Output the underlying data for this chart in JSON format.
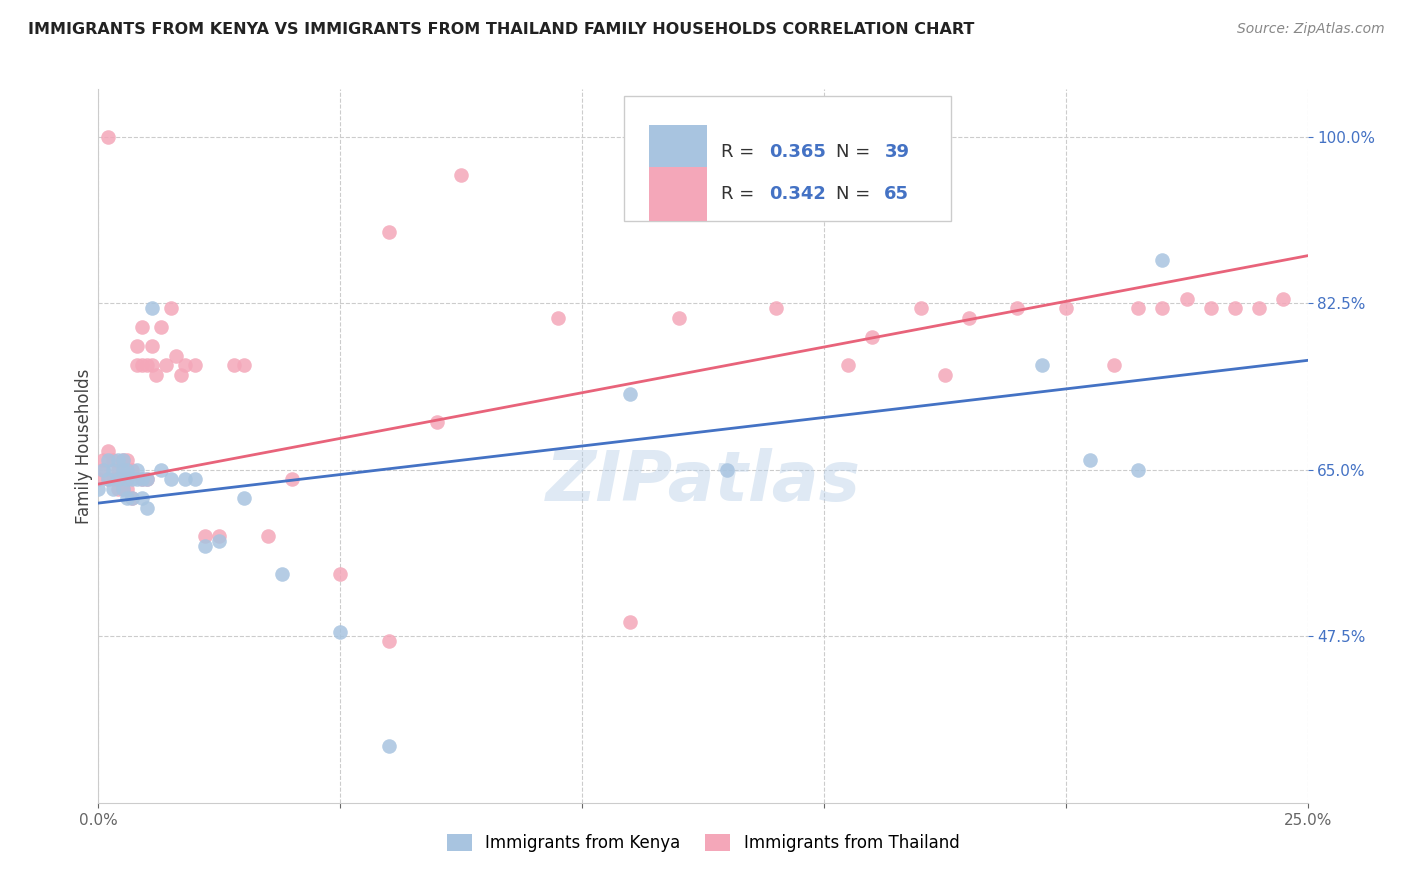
{
  "title": "IMMIGRANTS FROM KENYA VS IMMIGRANTS FROM THAILAND FAMILY HOUSEHOLDS CORRELATION CHART",
  "source": "Source: ZipAtlas.com",
  "ylabel": "Family Households",
  "kenya_color": "#a8c4e0",
  "thailand_color": "#f4a7b9",
  "kenya_line_color": "#4472c4",
  "thailand_line_color": "#e8637a",
  "watermark": "ZIPatlas",
  "kenya_x": [
    0.0,
    0.001,
    0.002,
    0.002,
    0.003,
    0.003,
    0.004,
    0.004,
    0.005,
    0.005,
    0.005,
    0.006,
    0.006,
    0.006,
    0.007,
    0.007,
    0.008,
    0.008,
    0.009,
    0.009,
    0.01,
    0.01,
    0.011,
    0.013,
    0.015,
    0.018,
    0.02,
    0.022,
    0.025,
    0.03,
    0.038,
    0.05,
    0.06,
    0.11,
    0.13,
    0.195,
    0.205,
    0.215,
    0.22
  ],
  "kenya_y": [
    0.63,
    0.65,
    0.64,
    0.66,
    0.63,
    0.65,
    0.64,
    0.66,
    0.63,
    0.65,
    0.66,
    0.64,
    0.62,
    0.65,
    0.62,
    0.64,
    0.64,
    0.65,
    0.62,
    0.64,
    0.61,
    0.64,
    0.82,
    0.65,
    0.64,
    0.64,
    0.64,
    0.57,
    0.575,
    0.62,
    0.54,
    0.48,
    0.36,
    0.73,
    0.65,
    0.76,
    0.66,
    0.65,
    0.87
  ],
  "thailand_x": [
    0.0,
    0.001,
    0.001,
    0.002,
    0.002,
    0.003,
    0.003,
    0.004,
    0.004,
    0.005,
    0.005,
    0.005,
    0.006,
    0.006,
    0.006,
    0.007,
    0.007,
    0.008,
    0.008,
    0.009,
    0.009,
    0.009,
    0.01,
    0.01,
    0.011,
    0.011,
    0.012,
    0.013,
    0.014,
    0.015,
    0.016,
    0.017,
    0.018,
    0.02,
    0.022,
    0.025,
    0.028,
    0.03,
    0.035,
    0.04,
    0.05,
    0.06,
    0.07,
    0.075,
    0.095,
    0.12,
    0.14,
    0.155,
    0.16,
    0.17,
    0.175,
    0.18,
    0.19,
    0.2,
    0.21,
    0.215,
    0.22,
    0.225,
    0.23,
    0.235,
    0.24,
    0.245,
    0.002,
    0.06,
    0.11
  ],
  "thailand_y": [
    0.64,
    0.66,
    0.65,
    0.67,
    0.64,
    0.66,
    0.64,
    0.65,
    0.63,
    0.66,
    0.64,
    0.63,
    0.66,
    0.64,
    0.63,
    0.65,
    0.62,
    0.76,
    0.78,
    0.8,
    0.76,
    0.64,
    0.76,
    0.64,
    0.78,
    0.76,
    0.75,
    0.8,
    0.76,
    0.82,
    0.77,
    0.75,
    0.76,
    0.76,
    0.58,
    0.58,
    0.76,
    0.76,
    0.58,
    0.64,
    0.54,
    0.47,
    0.7,
    0.96,
    0.81,
    0.81,
    0.82,
    0.76,
    0.79,
    0.82,
    0.75,
    0.81,
    0.82,
    0.82,
    0.76,
    0.82,
    0.82,
    0.83,
    0.82,
    0.82,
    0.82,
    0.83,
    1.0,
    0.9,
    0.49
  ],
  "xmin": 0.0,
  "xmax": 0.25,
  "ymin": 0.3,
  "ymax": 1.05,
  "ytick_vals": [
    1.0,
    0.825,
    0.65,
    0.475
  ],
  "ytick_labels": [
    "100.0%",
    "82.5%",
    "65.0%",
    "47.5%"
  ],
  "xtick_vals": [
    0.0,
    0.05,
    0.1,
    0.15,
    0.2,
    0.25
  ],
  "xtick_labels": [
    "0.0%",
    "",
    "",
    "",
    "",
    "25.0%"
  ]
}
